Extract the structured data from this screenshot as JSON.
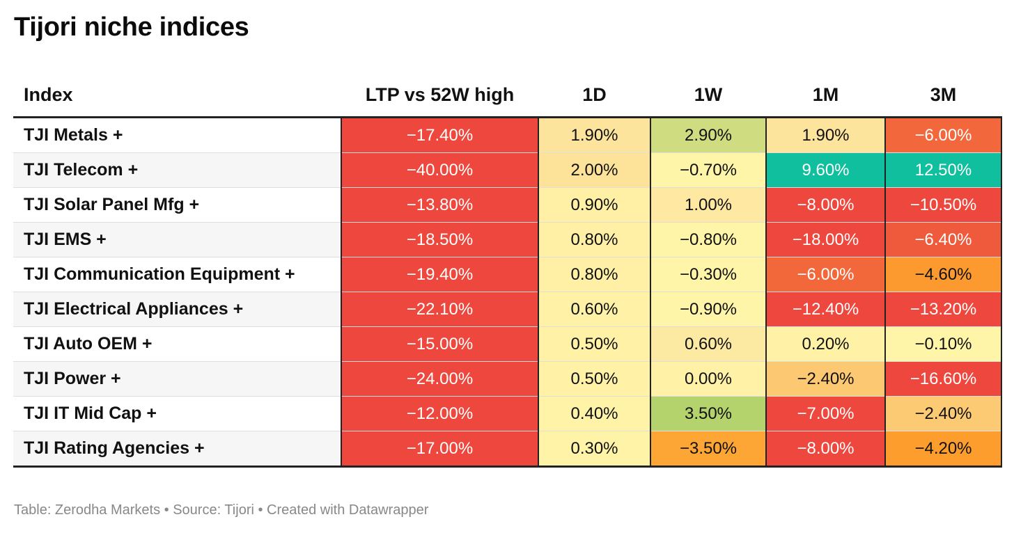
{
  "title": "Tijori niche indices",
  "footer": "Table: Zerodha Markets • Source: Tijori • Created with Datawrapper",
  "chart_data": {
    "type": "table",
    "title": "Tijori niche indices",
    "columns": [
      "Index",
      "LTP vs 52W high",
      "1D",
      "1W",
      "1M",
      "3M"
    ],
    "rows": [
      {
        "name": "TJI Metals +",
        "values": [
          "−17.40%",
          "1.90%",
          "2.90%",
          "1.90%",
          "−6.00%"
        ],
        "colors": [
          "#ee473d",
          "#fde49c",
          "#cfdc80",
          "#fde49c",
          "#f2673b"
        ]
      },
      {
        "name": "TJI Telecom +",
        "values": [
          "−40.00%",
          "2.00%",
          "−0.70%",
          "9.60%",
          "12.50%"
        ],
        "colors": [
          "#ee473d",
          "#fde29a",
          "#fff5a8",
          "#10bf9e",
          "#10bf9e"
        ]
      },
      {
        "name": "TJI Solar Panel Mfg +",
        "values": [
          "−13.80%",
          "0.90%",
          "1.00%",
          "−8.00%",
          "−10.50%"
        ],
        "colors": [
          "#ee473d",
          "#fff0a6",
          "#fee8a2",
          "#ee473d",
          "#ee473d"
        ]
      },
      {
        "name": "TJI EMS +",
        "values": [
          "−18.50%",
          "0.80%",
          "−0.80%",
          "−18.00%",
          "−6.40%"
        ],
        "colors": [
          "#ee473d",
          "#fff0a6",
          "#fff5a8",
          "#ee473d",
          "#f05a3c"
        ]
      },
      {
        "name": "TJI Communication Equipment +",
        "values": [
          "−19.40%",
          "0.80%",
          "−0.30%",
          "−6.00%",
          "−4.60%"
        ],
        "colors": [
          "#ee473d",
          "#fff0a6",
          "#fff5a8",
          "#f2683a",
          "#fc9a2f"
        ]
      },
      {
        "name": "TJI Electrical Appliances +",
        "values": [
          "−22.10%",
          "0.60%",
          "−0.90%",
          "−12.40%",
          "−13.20%"
        ],
        "colors": [
          "#ee473d",
          "#fff2a7",
          "#fff5a8",
          "#ee473d",
          "#ee473d"
        ]
      },
      {
        "name": "TJI Auto OEM +",
        "values": [
          "−15.00%",
          "0.50%",
          "0.60%",
          "0.20%",
          "−0.10%"
        ],
        "colors": [
          "#ee473d",
          "#fff2a7",
          "#fdeaa2",
          "#fff2a7",
          "#fff5a8"
        ]
      },
      {
        "name": "TJI Power +",
        "values": [
          "−24.00%",
          "0.50%",
          "0.00%",
          "−2.40%",
          "−16.60%"
        ],
        "colors": [
          "#ee473d",
          "#fff2a7",
          "#fff2a7",
          "#fdc872",
          "#ee473d"
        ]
      },
      {
        "name": "TJI IT Mid Cap +",
        "values": [
          "−12.00%",
          "0.40%",
          "3.50%",
          "−7.00%",
          "−2.40%"
        ],
        "colors": [
          "#ee473d",
          "#fff3a8",
          "#b5d36c",
          "#ee473d",
          "#fdca74"
        ]
      },
      {
        "name": "TJI Rating Agencies +",
        "values": [
          "−17.00%",
          "0.30%",
          "−3.50%",
          "−8.00%",
          "−4.20%"
        ],
        "colors": [
          "#ee473d",
          "#fff3a8",
          "#fda636",
          "#ee473d",
          "#fc9d2d"
        ]
      }
    ]
  }
}
